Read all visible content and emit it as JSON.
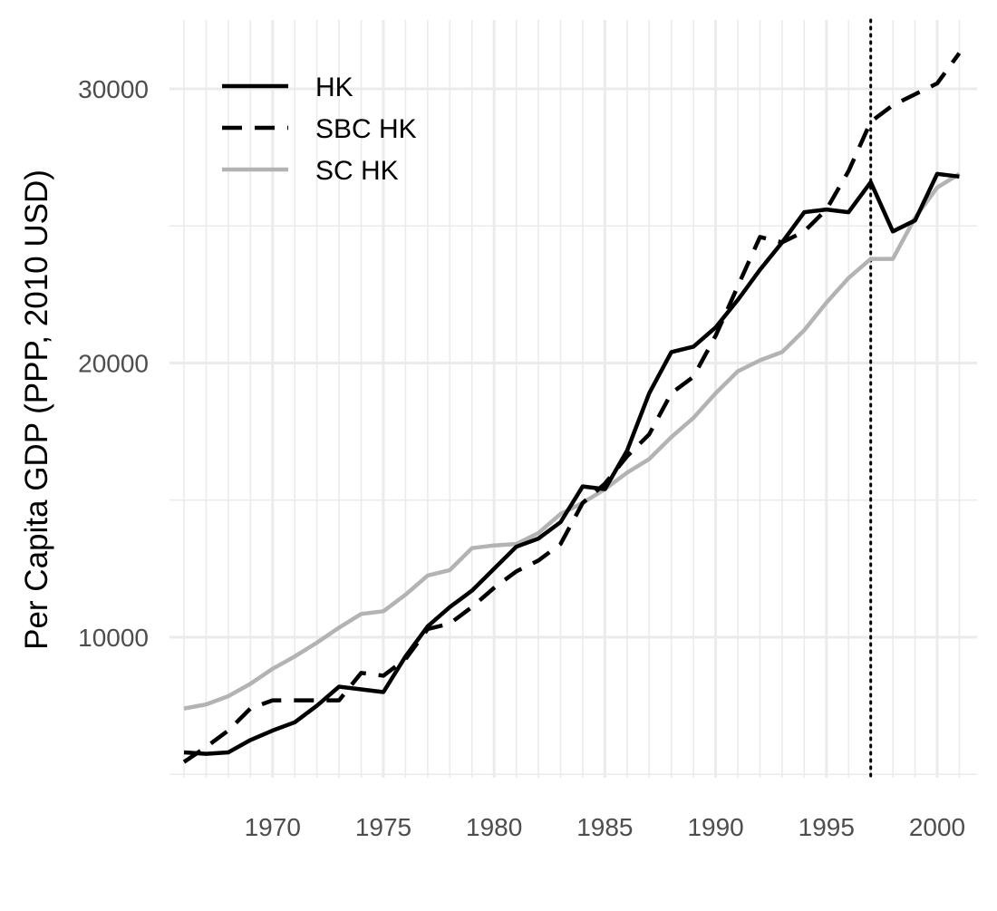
{
  "chart_data": {
    "type": "line",
    "title": "",
    "xlabel": "",
    "ylabel": "Per Capita GDP (PPP, 2010 USD)",
    "xlim": [
      1966,
      2001
    ],
    "ylim": [
      5000,
      32500
    ],
    "x_ticks": [
      1970,
      1975,
      1980,
      1985,
      1990,
      1995,
      2000
    ],
    "y_ticks": [
      10000,
      20000,
      30000
    ],
    "grid": true,
    "legend_position": "top-left",
    "reference_lines": [
      {
        "axis": "x",
        "value": 1997,
        "style": "dotted",
        "color": "#000000"
      }
    ],
    "x": [
      1966,
      1967,
      1968,
      1969,
      1970,
      1971,
      1972,
      1973,
      1974,
      1975,
      1976,
      1977,
      1978,
      1979,
      1980,
      1981,
      1982,
      1983,
      1984,
      1985,
      1986,
      1987,
      1988,
      1989,
      1990,
      1991,
      1992,
      1993,
      1994,
      1995,
      1996,
      1997,
      1998,
      1999,
      2000,
      2001
    ],
    "series": [
      {
        "name": "HK",
        "style": "solid",
        "color": "#000000",
        "values": [
          5800,
          5750,
          5800,
          6250,
          6600,
          6900,
          7500,
          8200,
          8100,
          8000,
          9300,
          10400,
          11100,
          11700,
          12500,
          13300,
          13600,
          14200,
          15500,
          15400,
          16800,
          18900,
          20400,
          20600,
          21300,
          22300,
          23400,
          24400,
          25500,
          25600,
          25500,
          26600,
          24800,
          25200,
          26900,
          26800
        ]
      },
      {
        "name": "SBC HK",
        "style": "dashed",
        "color": "#000000",
        "values": [
          5450,
          6000,
          6600,
          7400,
          7700,
          7700,
          7700,
          7700,
          8700,
          8600,
          9200,
          10300,
          10500,
          11100,
          11800,
          12400,
          12800,
          13400,
          14900,
          15600,
          16600,
          17400,
          18900,
          19500,
          21000,
          22800,
          24600,
          24400,
          24800,
          25600,
          27000,
          28800,
          29400,
          29800,
          30200,
          31300
        ]
      },
      {
        "name": "SC HK",
        "style": "solid",
        "color": "#b3b3b3",
        "values": [
          7400,
          7550,
          7850,
          8300,
          8850,
          9300,
          9800,
          10350,
          10850,
          10950,
          11550,
          12250,
          12450,
          13250,
          13350,
          13400,
          13800,
          14500,
          14900,
          15400,
          16000,
          16500,
          17300,
          18000,
          18900,
          19700,
          20100,
          20400,
          21200,
          22200,
          23100,
          23800,
          23800,
          25300,
          26400,
          26900
        ]
      }
    ]
  }
}
